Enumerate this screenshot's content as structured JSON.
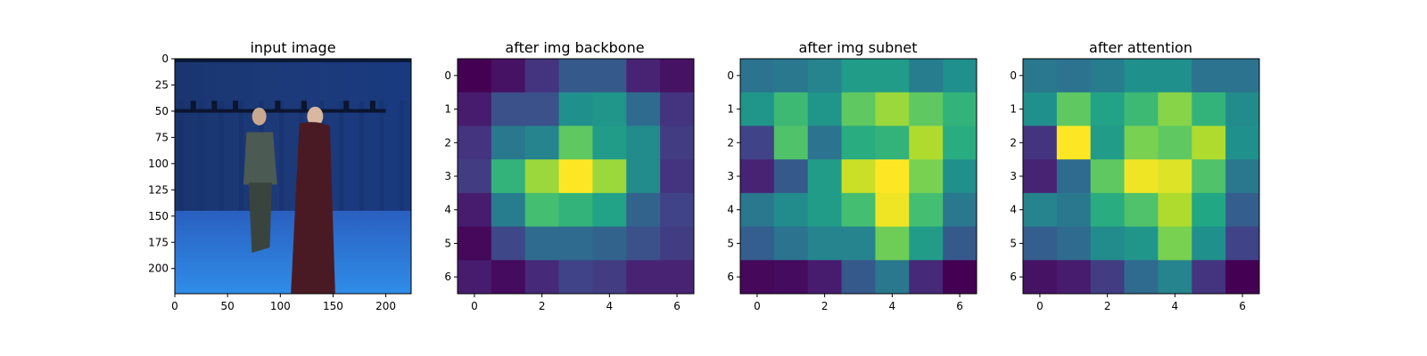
{
  "figure": {
    "titles": [
      "input image",
      "after img backbone",
      "after img subnet",
      "after attention"
    ]
  },
  "chart_data": [
    {
      "type": "image",
      "title": "input image",
      "xlim": [
        0,
        224
      ],
      "ylim": [
        224,
        0
      ],
      "xticks": [
        0,
        50,
        100,
        150,
        200
      ],
      "yticks": [
        0,
        25,
        50,
        75,
        100,
        125,
        150,
        175,
        200
      ],
      "scene": {
        "backdrop_color": "#1c3a7a",
        "floor_color": "#2f8de8",
        "figures": [
          "person-left",
          "person-right"
        ]
      }
    },
    {
      "type": "heatmap",
      "title": "after img backbone",
      "colormap": "viridis",
      "xticks": [
        0,
        2,
        4,
        6
      ],
      "yticks": [
        0,
        1,
        2,
        3,
        4,
        5,
        6
      ],
      "values": [
        [
          0.0,
          0.05,
          0.15,
          0.28,
          0.28,
          0.1,
          0.05
        ],
        [
          0.08,
          0.25,
          0.25,
          0.5,
          0.52,
          0.35,
          0.15
        ],
        [
          0.15,
          0.4,
          0.45,
          0.75,
          0.55,
          0.48,
          0.18
        ],
        [
          0.18,
          0.65,
          0.85,
          1.0,
          0.85,
          0.48,
          0.15
        ],
        [
          0.08,
          0.42,
          0.7,
          0.65,
          0.58,
          0.32,
          0.2
        ],
        [
          0.02,
          0.22,
          0.35,
          0.35,
          0.32,
          0.25,
          0.18
        ],
        [
          0.08,
          0.03,
          0.12,
          0.2,
          0.18,
          0.1,
          0.1
        ]
      ]
    },
    {
      "type": "heatmap",
      "title": "after img subnet",
      "colormap": "viridis",
      "xticks": [
        0,
        2,
        4,
        6
      ],
      "yticks": [
        0,
        1,
        2,
        3,
        4,
        5,
        6
      ],
      "values": [
        [
          0.38,
          0.4,
          0.45,
          0.55,
          0.55,
          0.42,
          0.5
        ],
        [
          0.52,
          0.68,
          0.52,
          0.75,
          0.85,
          0.75,
          0.65
        ],
        [
          0.2,
          0.72,
          0.38,
          0.62,
          0.65,
          0.88,
          0.62
        ],
        [
          0.1,
          0.28,
          0.55,
          0.92,
          1.0,
          0.8,
          0.5
        ],
        [
          0.4,
          0.48,
          0.55,
          0.7,
          0.98,
          0.7,
          0.4
        ],
        [
          0.3,
          0.38,
          0.45,
          0.45,
          0.78,
          0.55,
          0.28
        ],
        [
          0.02,
          0.03,
          0.08,
          0.28,
          0.4,
          0.12,
          0.0
        ]
      ]
    },
    {
      "type": "heatmap",
      "title": "after attention",
      "colormap": "viridis",
      "xticks": [
        0,
        2,
        4,
        6
      ],
      "yticks": [
        0,
        1,
        2,
        3,
        4,
        5,
        6
      ],
      "values": [
        [
          0.4,
          0.38,
          0.42,
          0.5,
          0.5,
          0.38,
          0.38
        ],
        [
          0.5,
          0.75,
          0.58,
          0.68,
          0.82,
          0.65,
          0.48
        ],
        [
          0.15,
          1.0,
          0.55,
          0.8,
          0.75,
          0.88,
          0.5
        ],
        [
          0.1,
          0.35,
          0.75,
          0.98,
          0.95,
          0.72,
          0.4
        ],
        [
          0.45,
          0.4,
          0.62,
          0.72,
          0.88,
          0.6,
          0.3
        ],
        [
          0.3,
          0.35,
          0.48,
          0.52,
          0.8,
          0.5,
          0.2
        ],
        [
          0.05,
          0.08,
          0.18,
          0.35,
          0.45,
          0.15,
          0.0
        ]
      ]
    }
  ]
}
